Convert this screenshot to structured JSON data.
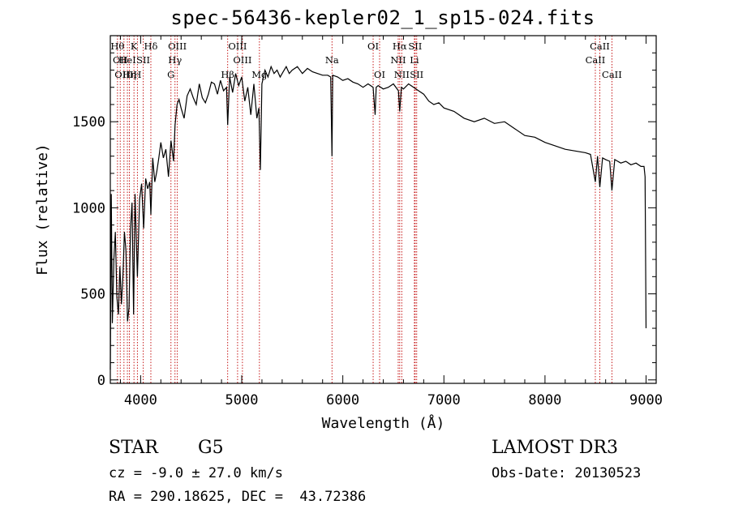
{
  "chart_data": {
    "type": "line",
    "title": "spec-56436-kepler02_1_sp15-024.fits",
    "xlabel": "Wavelength (Å)",
    "ylabel": "Flux (relative)",
    "xlim": [
      3700,
      9100
    ],
    "ylim": [
      -20,
      2000
    ],
    "xticks": [
      4000,
      5000,
      6000,
      7000,
      8000,
      9000
    ],
    "yticks": [
      0,
      500,
      1000,
      1500
    ],
    "series": [
      {
        "name": "spectrum",
        "x": [
          3700,
          3710,
          3720,
          3735,
          3750,
          3765,
          3780,
          3795,
          3810,
          3825,
          3840,
          3855,
          3870,
          3885,
          3900,
          3915,
          3930,
          3945,
          3968,
          3990,
          4010,
          4030,
          4050,
          4070,
          4090,
          4101,
          4120,
          4140,
          4160,
          4180,
          4200,
          4225,
          4250,
          4275,
          4300,
          4326,
          4340,
          4360,
          4380,
          4400,
          4430,
          4460,
          4490,
          4520,
          4550,
          4580,
          4610,
          4640,
          4670,
          4700,
          4730,
          4760,
          4790,
          4820,
          4850,
          4861,
          4880,
          4910,
          4940,
          4970,
          5000,
          5030,
          5060,
          5090,
          5120,
          5150,
          5170,
          5184,
          5200,
          5230,
          5260,
          5290,
          5320,
          5350,
          5380,
          5410,
          5440,
          5470,
          5500,
          5550,
          5600,
          5650,
          5700,
          5750,
          5800,
          5850,
          5880,
          5893,
          5900,
          5950,
          6000,
          6050,
          6100,
          6150,
          6200,
          6250,
          6300,
          6320,
          6330,
          6350,
          6400,
          6450,
          6500,
          6550,
          6563,
          6580,
          6600,
          6650,
          6700,
          6750,
          6800,
          6850,
          6900,
          6950,
          7000,
          7100,
          7200,
          7300,
          7400,
          7500,
          7600,
          7700,
          7800,
          7900,
          8000,
          8100,
          8200,
          8300,
          8400,
          8450,
          8498,
          8520,
          8542,
          8570,
          8600,
          8640,
          8662,
          8690,
          8750,
          8800,
          8850,
          8900,
          8950,
          8980,
          8990,
          9000
        ],
        "y": [
          60,
          1080,
          330,
          700,
          860,
          480,
          380,
          660,
          440,
          610,
          860,
          750,
          340,
          420,
          880,
          1030,
          380,
          1080,
          600,
          1050,
          1140,
          880,
          1170,
          1110,
          1150,
          960,
          1290,
          1150,
          1210,
          1290,
          1380,
          1290,
          1340,
          1180,
          1390,
          1270,
          1480,
          1600,
          1630,
          1580,
          1520,
          1650,
          1690,
          1640,
          1600,
          1720,
          1640,
          1610,
          1660,
          1730,
          1720,
          1660,
          1740,
          1680,
          1700,
          1480,
          1760,
          1670,
          1780,
          1710,
          1760,
          1620,
          1700,
          1540,
          1720,
          1520,
          1580,
          1220,
          1720,
          1800,
          1760,
          1820,
          1780,
          1800,
          1760,
          1790,
          1820,
          1780,
          1800,
          1820,
          1780,
          1810,
          1790,
          1780,
          1770,
          1770,
          1760,
          1300,
          1770,
          1760,
          1740,
          1750,
          1730,
          1720,
          1700,
          1720,
          1700,
          1540,
          1700,
          1710,
          1690,
          1700,
          1720,
          1680,
          1560,
          1700,
          1690,
          1720,
          1700,
          1680,
          1660,
          1620,
          1600,
          1610,
          1580,
          1560,
          1520,
          1500,
          1520,
          1490,
          1500,
          1460,
          1420,
          1410,
          1380,
          1360,
          1340,
          1330,
          1320,
          1310,
          1150,
          1300,
          1120,
          1290,
          1280,
          1270,
          1100,
          1280,
          1260,
          1270,
          1250,
          1260,
          1240,
          1240,
          1180,
          300
        ]
      }
    ],
    "lines": [
      {
        "x": 3771,
        "label": "Hθ",
        "row": 1
      },
      {
        "x": 3798,
        "label": "OII",
        "row": 2
      },
      {
        "x": 3835,
        "label": "OIII",
        "row": 3
      },
      {
        "x": 3869,
        "label": "HeI",
        "row": 2
      },
      {
        "x": 3889,
        "label": "Hη",
        "row": 3
      },
      {
        "x": 3934,
        "label": "K",
        "row": 1
      },
      {
        "x": 3968,
        "label": "H",
        "row": 3
      },
      {
        "x": 4026,
        "label": "SII",
        "row": 2
      },
      {
        "x": 4101,
        "label": "Hδ",
        "row": 1
      },
      {
        "x": 4300,
        "label": "G",
        "row": 3
      },
      {
        "x": 4340,
        "label": "Hγ",
        "row": 2
      },
      {
        "x": 4363,
        "label": "OIII",
        "row": 1
      },
      {
        "x": 4861,
        "label": "Hβ",
        "row": 3
      },
      {
        "x": 4959,
        "label": "OIII",
        "row": 1
      },
      {
        "x": 5007,
        "label": "OIII",
        "row": 2
      },
      {
        "x": 5175,
        "label": "Mg",
        "row": 3
      },
      {
        "x": 5893,
        "label": "Na",
        "row": 2
      },
      {
        "x": 6300,
        "label": "OI",
        "row": 1
      },
      {
        "x": 6364,
        "label": "OI",
        "row": 3
      },
      {
        "x": 6548,
        "label": "NII",
        "row": 2
      },
      {
        "x": 6563,
        "label": "Hα",
        "row": 1
      },
      {
        "x": 6583,
        "label": "NII",
        "row": 3
      },
      {
        "x": 6708,
        "label": "Li",
        "row": 2
      },
      {
        "x": 6716,
        "label": "SII",
        "row": 1
      },
      {
        "x": 6731,
        "label": "SII",
        "row": 3
      },
      {
        "x": 8498,
        "label": "CaII",
        "row": 2
      },
      {
        "x": 8542,
        "label": "CaII",
        "row": 1
      },
      {
        "x": 8662,
        "label": "CaII",
        "row": 3
      }
    ]
  },
  "info": {
    "object_class": "STAR",
    "subclass": "G5",
    "survey": "LAMOST DR3",
    "cz": "cz = -9.0 ± 27.0 km/s",
    "obs_date": "Obs-Date: 20130523",
    "coords": "RA = 290.18625, DEC =  43.72386"
  }
}
